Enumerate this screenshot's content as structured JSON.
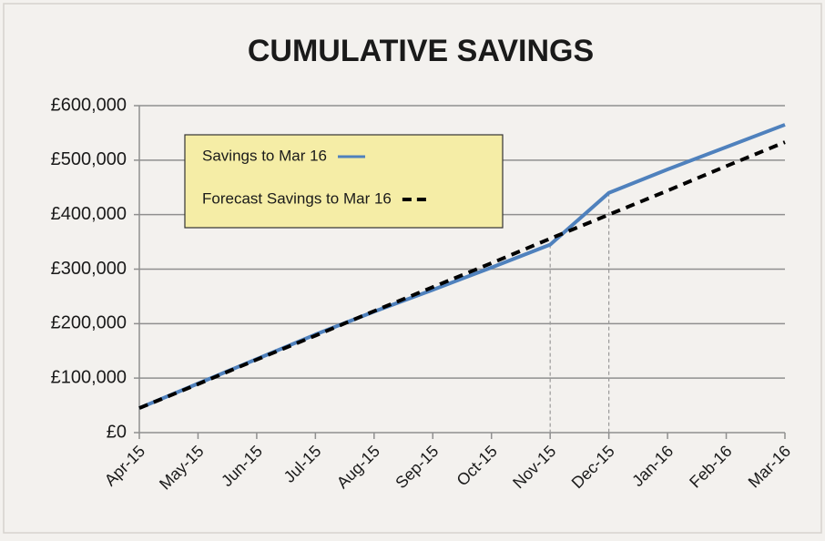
{
  "chart_data": {
    "type": "line",
    "title": "CUMULATIVE SAVINGS",
    "categories": [
      "Apr-15",
      "May-15",
      "Jun-15",
      "Jul-15",
      "Aug-15",
      "Sep-15",
      "Oct-15",
      "Nov-15",
      "Dec-15",
      "Jan-16",
      "Feb-16",
      "Mar-16"
    ],
    "series": [
      {
        "name": "Savings to Mar 16",
        "color": "#4f81bd",
        "style": "solid",
        "values": [
          45000,
          90000,
          135000,
          180000,
          222000,
          262000,
          303000,
          345000,
          440000,
          483000,
          524000,
          565000
        ]
      },
      {
        "name": "Forecast Savings to Mar 16",
        "color": "#000000",
        "style": "dashed",
        "values": [
          45000,
          89000,
          134000,
          178000,
          223000,
          267000,
          311000,
          356000,
          400000,
          444000,
          489000,
          533000
        ]
      }
    ],
    "ylim": [
      0,
      600000
    ],
    "yticks": [
      {
        "value": 0,
        "label": "£0"
      },
      {
        "value": 100000,
        "label": "£100,000"
      },
      {
        "value": 200000,
        "label": "£200,000"
      },
      {
        "value": 300000,
        "label": "£300,000"
      },
      {
        "value": 400000,
        "label": "£400,000"
      },
      {
        "value": 500000,
        "label": "£500,000"
      },
      {
        "value": 600000,
        "label": "£600,000"
      }
    ],
    "grid": true,
    "legend": "upper left"
  }
}
